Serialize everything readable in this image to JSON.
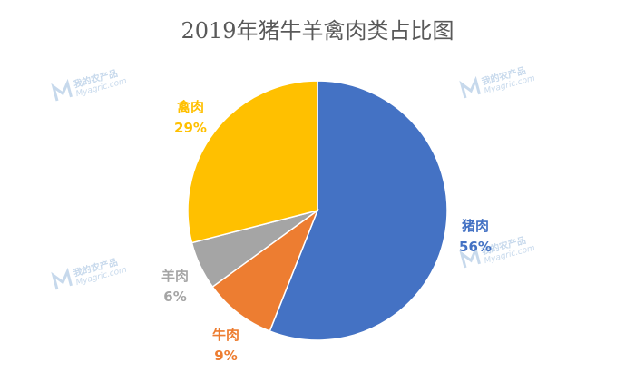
{
  "watermark": {
    "text_cn": "我的农产品",
    "text_en": "Myagric.com"
  },
  "chart_data": {
    "type": "pie",
    "title": "2019年猪牛羊禽肉类占比图",
    "slices": [
      {
        "label": "猪肉",
        "value": 56,
        "value_label": "56%",
        "color": "#4472c4"
      },
      {
        "label": "牛肉",
        "value": 9,
        "value_label": "9%",
        "color": "#ed7d31"
      },
      {
        "label": "羊肉",
        "value": 6,
        "value_label": "6%",
        "color": "#a5a5a5"
      },
      {
        "label": "禽肉",
        "value": 29,
        "value_label": "29%",
        "color": "#ffc000"
      }
    ],
    "start_angle": "12 o'clock",
    "direction": "clockwise",
    "legend": "none"
  }
}
